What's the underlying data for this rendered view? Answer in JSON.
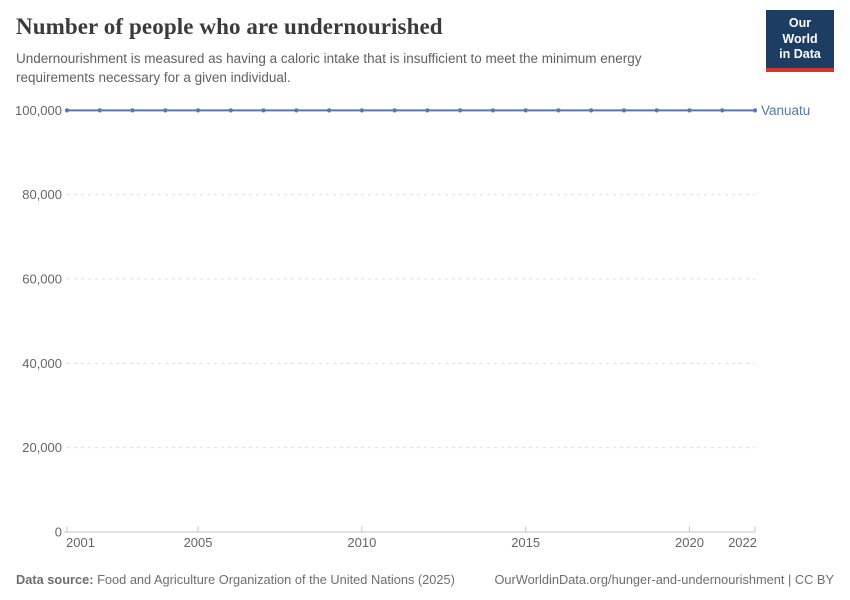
{
  "header": {
    "title": "Number of people who are undernourished",
    "subtitle": "Undernourishment is measured as having a caloric intake that is insufficient to meet the minimum energy requirements necessary for a given individual.",
    "logo": {
      "line1": "Our World",
      "line2": "in Data",
      "bg_color": "#1d3d63",
      "accent_color": "#d8352a"
    }
  },
  "chart_data": {
    "type": "line",
    "title": "Number of people who are undernourished",
    "x": [
      2001,
      2002,
      2003,
      2004,
      2005,
      2006,
      2007,
      2008,
      2009,
      2010,
      2011,
      2012,
      2013,
      2014,
      2015,
      2016,
      2017,
      2018,
      2019,
      2020,
      2021,
      2022
    ],
    "series": [
      {
        "name": "Vanuatu",
        "color": "#5877a9",
        "values": [
          100000,
          100000,
          100000,
          100000,
          100000,
          100000,
          100000,
          100000,
          100000,
          100000,
          100000,
          100000,
          100000,
          100000,
          100000,
          100000,
          100000,
          100000,
          100000,
          100000,
          100000,
          100000
        ]
      }
    ],
    "xlabel": "",
    "ylabel": "",
    "ylim": [
      0,
      100000
    ],
    "xlim": [
      2001,
      2022
    ],
    "y_ticks": [
      0,
      20000,
      40000,
      60000,
      80000,
      100000
    ],
    "y_tick_labels": [
      "0",
      "20,000",
      "40,000",
      "60,000",
      "80,000",
      "100,000"
    ],
    "x_ticks": [
      2001,
      2005,
      2010,
      2015,
      2020,
      2022
    ],
    "x_tick_labels": [
      "2001",
      "2005",
      "2010",
      "2015",
      "2020",
      "2022"
    ],
    "grid": "horizontal-dashed",
    "legend_position": "line-end-label",
    "colors": {
      "gridline": "#dedede",
      "axis_line": "#c4c4c4",
      "tick_label": "#666666"
    }
  },
  "footer": {
    "data_source_label": "Data source:",
    "data_source_value": "Food and Agriculture Organization of the United Nations (2025)",
    "attribution": "OurWorldinData.org/hunger-and-undernourishment | CC BY"
  }
}
